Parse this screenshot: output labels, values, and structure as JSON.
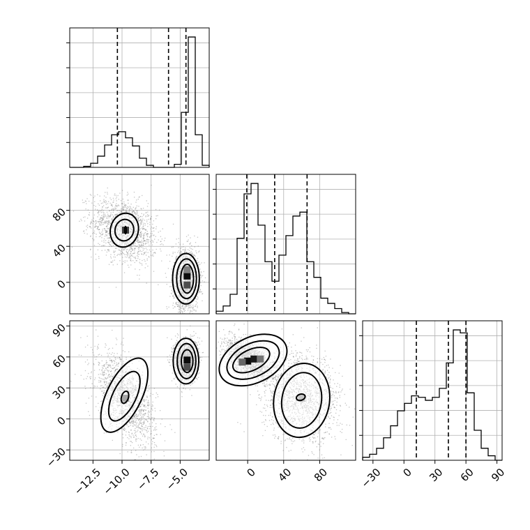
{
  "chart_data": {
    "type": "corner",
    "parameters": [
      {
        "xlim": [
          -14.5,
          -2.5
        ],
        "ticks": [
          -12.5,
          -10.0,
          -7.5,
          -5.0
        ],
        "tick_labels": [
          "−12.5",
          "−10.0",
          "−7.5",
          "−5.0"
        ],
        "hist_bins": [
          -14.5,
          -13.9,
          -13.3,
          -12.7,
          -12.1,
          -11.5,
          -10.9,
          -10.3,
          -9.7,
          -9.1,
          -8.5,
          -7.9,
          -7.3,
          -6.7,
          -6.1,
          -5.5,
          -4.9,
          -4.3,
          -3.7,
          -3.1,
          -2.5
        ],
        "hist_counts": [
          0,
          0,
          1,
          4,
          11,
          22,
          32,
          35,
          29,
          21,
          9,
          2,
          0,
          0,
          0,
          3,
          54,
          128,
          32,
          2
        ],
        "quantiles": [
          -10.4,
          -6.0,
          -4.5
        ]
      },
      {
        "xlim": [
          -35,
          120
        ],
        "ticks": [
          0,
          40,
          80
        ],
        "tick_labels": [
          "0",
          "40",
          "80"
        ],
        "hist_bins": [
          -35,
          -27.25,
          -19.5,
          -11.75,
          -4,
          3.75,
          11.5,
          19.25,
          27,
          34.75,
          42.5,
          50.25,
          58,
          65.75,
          73.5,
          81.25,
          89,
          96.75,
          104.5,
          112.25,
          120
        ],
        "hist_counts": [
          2,
          6,
          15,
          58,
          92,
          100,
          68,
          40,
          25,
          45,
          60,
          75,
          78,
          40,
          28,
          12,
          8,
          4,
          1,
          0
        ],
        "quantiles": [
          -1,
          30,
          66
        ]
      },
      {
        "xlim": [
          -40,
          95
        ],
        "ticks": [
          -30,
          0,
          30,
          60,
          90
        ],
        "tick_labels": [
          "−30",
          "0",
          "30",
          "60",
          "90"
        ],
        "hist_bins": [
          -40,
          -33.25,
          -26.5,
          -19.75,
          -13,
          -6.25,
          0.5,
          7.25,
          14,
          20.75,
          27.5,
          34.25,
          41,
          47.75,
          54.5,
          61.25,
          68,
          74.75,
          81.5,
          88.25,
          95
        ],
        "hist_counts": [
          2,
          4,
          8,
          15,
          23,
          33,
          38,
          43,
          42,
          40,
          42,
          48,
          65,
          87,
          85,
          45,
          20,
          8,
          3,
          0
        ],
        "quantiles": [
          12,
          43,
          60
        ]
      }
    ],
    "panels_2d": [
      {
        "row": 1,
        "col": 0,
        "ylim": [
          -35,
          120
        ],
        "y_ticks": [
          0,
          40,
          80
        ],
        "modes": [
          {
            "cx": -9.8,
            "cy": 58,
            "sx": 1.4,
            "sy": 18,
            "rho": -0.3,
            "n": 1500
          },
          {
            "cx": -4.5,
            "cy": 2,
            "sx": 0.55,
            "sy": 17,
            "rho": 0.0,
            "n": 1500
          }
        ],
        "peaks": [
          {
            "x": -9.7,
            "y": 58,
            "v": 0.75
          },
          {
            "x": -4.4,
            "y": 7,
            "v": 0.95
          },
          {
            "x": -4.4,
            "y": -3,
            "v": 0.7
          },
          {
            "x": -4.4,
            "y": 14,
            "v": 0.5
          }
        ],
        "contours": [
          {
            "cx": -9.8,
            "cy": 58,
            "rx": 1.2,
            "ry": 19,
            "rot": -0.25
          },
          {
            "cx": -9.8,
            "cy": 58,
            "rx": 0.8,
            "ry": 12,
            "rot": -0.25
          },
          {
            "cx": -9.7,
            "cy": 58,
            "rx": 0.05,
            "ry": 4,
            "rot": 0
          },
          {
            "cx": -4.5,
            "cy": 4,
            "rx": 1.15,
            "ry": 28,
            "rot": 0
          },
          {
            "cx": -4.45,
            "cy": 4,
            "rx": 0.85,
            "ry": 22,
            "rot": 0
          },
          {
            "cx": -4.4,
            "cy": 4,
            "rx": 0.55,
            "ry": 16,
            "rot": 0
          }
        ]
      },
      {
        "row": 2,
        "col": 0,
        "ylim": [
          -40,
          95
        ],
        "y_ticks": [
          -30,
          0,
          30,
          60,
          90
        ],
        "modes": [
          {
            "cx": -9.7,
            "cy": 20,
            "sx": 1.3,
            "sy": 22,
            "rho": -0.55,
            "n": 1500
          },
          {
            "cx": -4.5,
            "cy": 57,
            "sx": 0.5,
            "sy": 10,
            "rho": 0.0,
            "n": 1500
          }
        ],
        "peaks": [
          {
            "x": -4.4,
            "y": 57,
            "v": 0.95
          },
          {
            "x": -4.4,
            "y": 50,
            "v": 0.7
          },
          {
            "x": -9.7,
            "y": 20,
            "v": 0.35
          }
        ],
        "contours": [
          {
            "cx": -9.8,
            "cy": 23,
            "rx": 1.5,
            "ry": 39,
            "rot": -0.45
          },
          {
            "cx": -9.8,
            "cy": 22,
            "rx": 1.0,
            "ry": 26,
            "rot": -0.45
          },
          {
            "cx": -9.75,
            "cy": 21,
            "rx": 0.3,
            "ry": 6,
            "rot": -0.3
          },
          {
            "cx": -4.5,
            "cy": 56,
            "rx": 1.1,
            "ry": 22,
            "rot": 0
          },
          {
            "cx": -4.45,
            "cy": 56,
            "rx": 0.8,
            "ry": 17,
            "rot": 0
          },
          {
            "cx": -4.4,
            "cy": 56,
            "rx": 0.5,
            "ry": 11,
            "rot": 0
          }
        ]
      },
      {
        "row": 2,
        "col": 1,
        "ylim": [
          -40,
          95
        ],
        "y_ticks": [],
        "modes": [
          {
            "cx": 2,
            "cy": 57,
            "sx": 14,
            "sy": 10,
            "rho": -0.5,
            "n": 1500
          },
          {
            "cx": 60,
            "cy": 20,
            "sx": 22,
            "sy": 22,
            "rho": -0.15,
            "n": 1500
          }
        ],
        "peaks": [
          {
            "x": 0,
            "y": 56,
            "v": 0.95
          },
          {
            "x": 7,
            "y": 58,
            "v": 0.9
          },
          {
            "x": -6,
            "y": 55,
            "v": 0.6
          },
          {
            "x": 14,
            "y": 58,
            "v": 0.55
          },
          {
            "x": 60,
            "y": 20,
            "v": 0.22
          }
        ],
        "contours": [
          {
            "cx": 6,
            "cy": 57,
            "rx": 40,
            "ry": 22,
            "rot": 0.45
          },
          {
            "cx": 6,
            "cy": 57,
            "rx": 31,
            "ry": 16,
            "rot": 0.45
          },
          {
            "cx": 4,
            "cy": 57,
            "rx": 22,
            "ry": 10,
            "rot": 0.45
          },
          {
            "cx": 60,
            "cy": 18,
            "rx": 31,
            "ry": 36,
            "rot": -0.15
          },
          {
            "cx": 60,
            "cy": 18,
            "rx": 22,
            "ry": 27,
            "rot": -0.15
          },
          {
            "cx": 59,
            "cy": 21,
            "rx": 5,
            "ry": 3,
            "rot": 0.3
          }
        ]
      }
    ]
  }
}
